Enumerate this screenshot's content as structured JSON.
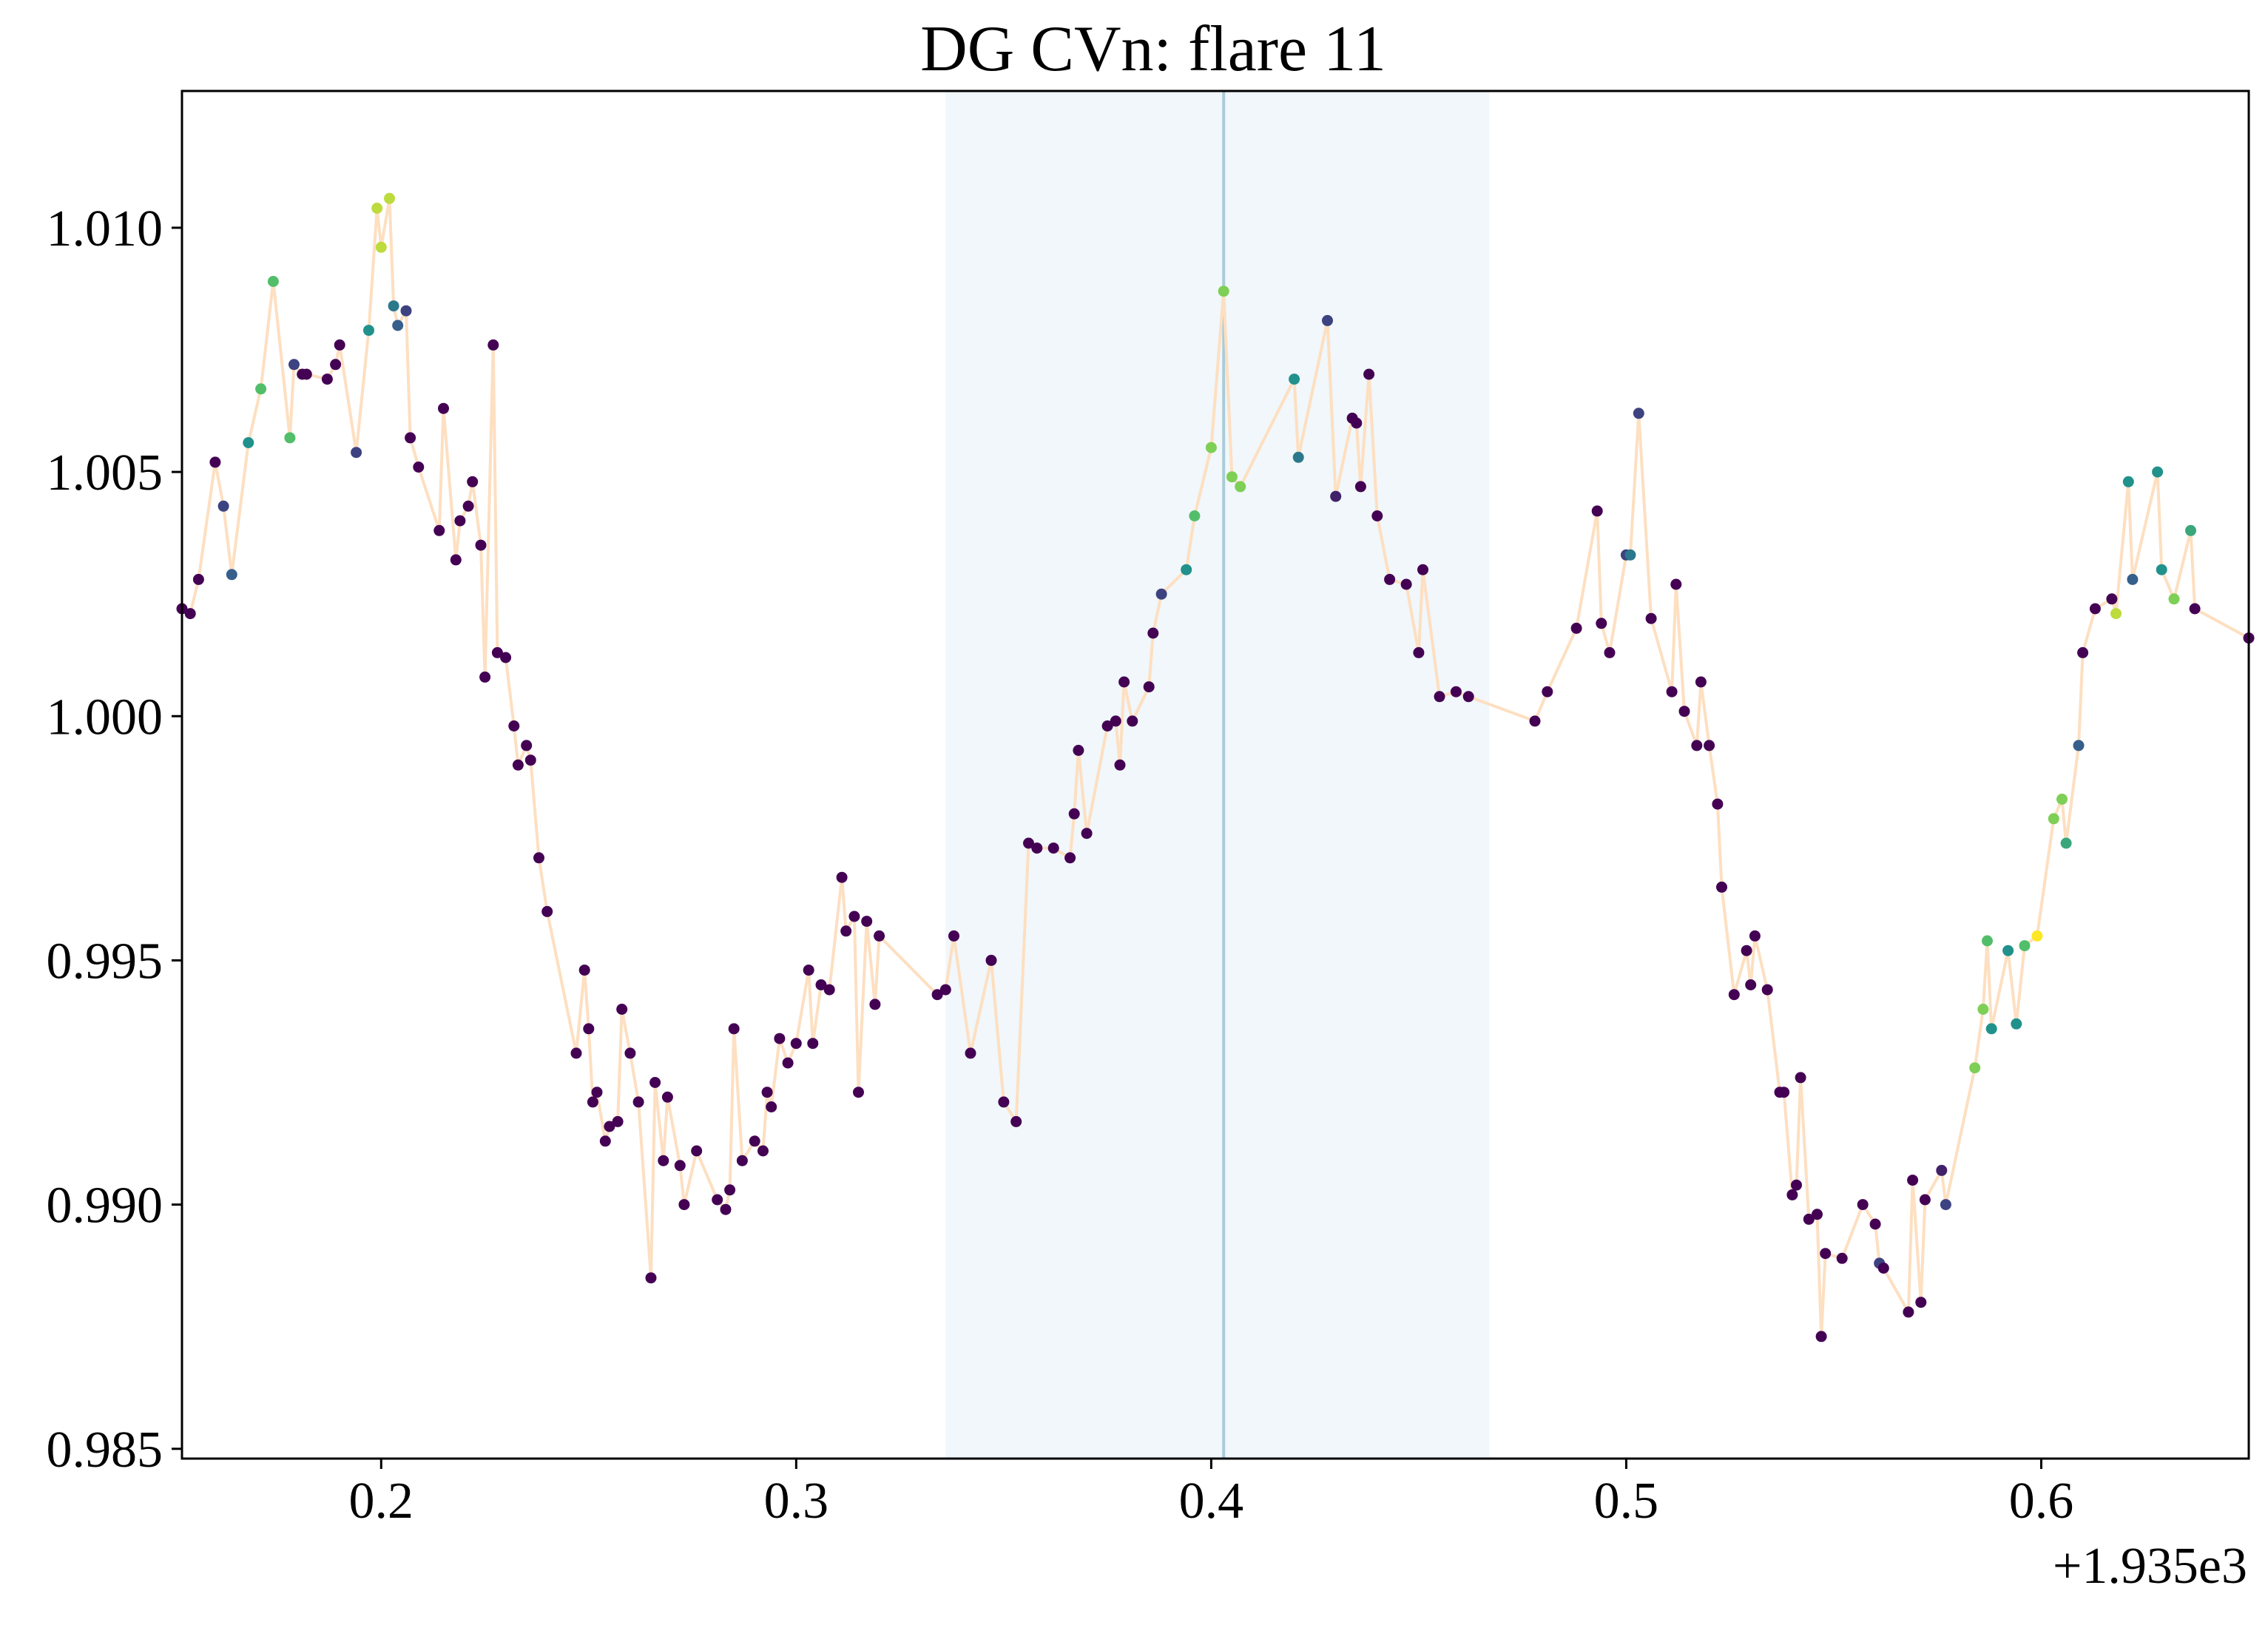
{
  "chart_data": {
    "type": "scatter",
    "title": "DG CVn: flare 11",
    "xlabel": "",
    "ylabel": "",
    "x_offset_label": "+1.935e3",
    "xlim": [
      0.152,
      0.65
    ],
    "ylim": [
      0.9848,
      1.0128
    ],
    "x_ticks": [
      0.2,
      0.3,
      0.4,
      0.5,
      0.6
    ],
    "x_tick_labels": [
      "0.2",
      "0.3",
      "0.4",
      "0.5",
      "0.6"
    ],
    "y_ticks": [
      0.985,
      0.99,
      0.995,
      1.0,
      1.005,
      1.01
    ],
    "y_tick_labels": [
      "0.985",
      "0.990",
      "0.995",
      "1.000",
      "1.005",
      "1.010"
    ],
    "grid": false,
    "shaded_region": {
      "x_start": 0.336,
      "x_end": 0.467,
      "color": "#f1f7fa"
    },
    "vertical_line": {
      "x": 0.403,
      "color": "#a9ccd8"
    },
    "line_color": "#fddfc1",
    "colormap": [
      "#440154",
      "#3b528b",
      "#21918c",
      "#5ec962",
      "#fde725"
    ],
    "series": [
      {
        "points": [
          [
            0.152,
            1.0022,
            0.0
          ],
          [
            0.154,
            1.0021,
            0.0
          ],
          [
            0.156,
            1.0028,
            0.0
          ],
          [
            0.16,
            1.0052,
            0.0
          ],
          [
            0.162,
            1.0043,
            0.2
          ],
          [
            0.164,
            1.0029,
            0.3
          ],
          [
            0.168,
            1.0056,
            0.5
          ],
          [
            0.171,
            1.0067,
            0.7
          ],
          [
            0.174,
            1.0089,
            0.7
          ],
          [
            0.178,
            1.0057,
            0.7
          ],
          [
            0.179,
            1.0072,
            0.2
          ],
          [
            0.181,
            1.007,
            0.0
          ],
          [
            0.182,
            1.007,
            0.0
          ],
          [
            0.187,
            1.0069,
            0.0
          ],
          [
            0.189,
            1.0072,
            0.0
          ],
          [
            0.19,
            1.0076,
            0.0
          ],
          [
            0.194,
            1.0054,
            0.2
          ],
          [
            0.197,
            1.0079,
            0.5
          ],
          [
            0.199,
            1.0104,
            0.9
          ],
          [
            0.2,
            1.0096,
            0.9
          ],
          [
            0.202,
            1.0106,
            0.9
          ],
          [
            0.203,
            1.0084,
            0.4
          ],
          [
            0.204,
            1.008,
            0.3
          ],
          [
            0.206,
            1.0083,
            0.2
          ],
          [
            0.207,
            1.0057,
            0.0
          ],
          [
            0.209,
            1.0051,
            0.0
          ],
          [
            0.214,
            1.0038,
            0.0
          ],
          [
            0.215,
            1.0063,
            0.0
          ],
          [
            0.218,
            1.0032,
            0.0
          ],
          [
            0.219,
            1.004,
            0.0
          ],
          [
            0.221,
            1.0043,
            0.0
          ],
          [
            0.222,
            1.0048,
            0.0
          ],
          [
            0.224,
            1.0035,
            0.0
          ],
          [
            0.225,
            1.0008,
            0.0
          ],
          [
            0.227,
            1.0076,
            0.0
          ],
          [
            0.228,
            1.0013,
            0.0
          ],
          [
            0.23,
            1.0012,
            0.0
          ],
          [
            0.232,
            0.9998,
            0.0
          ],
          [
            0.233,
            0.999,
            0.0
          ],
          [
            0.235,
            0.9994,
            0.0
          ],
          [
            0.236,
            0.9991,
            0.0
          ],
          [
            0.238,
            0.9971,
            0.0
          ],
          [
            0.24,
            0.996,
            0.0
          ],
          [
            0.247,
            0.9931,
            0.0
          ],
          [
            0.249,
            0.9948,
            0.0
          ],
          [
            0.25,
            0.9936,
            0.0
          ],
          [
            0.251,
            0.9921,
            0.0
          ],
          [
            0.252,
            0.9923,
            0.0
          ],
          [
            0.254,
            0.9913,
            0.0
          ],
          [
            0.255,
            0.9916,
            0.0
          ],
          [
            0.257,
            0.9917,
            0.0
          ],
          [
            0.258,
            0.994,
            0.0
          ],
          [
            0.26,
            0.9931,
            0.0
          ],
          [
            0.262,
            0.9921,
            0.0
          ],
          [
            0.265,
            0.9885,
            0.0
          ],
          [
            0.266,
            0.9925,
            0.0
          ],
          [
            0.268,
            0.9909,
            0.0
          ],
          [
            0.269,
            0.9922,
            0.0
          ],
          [
            0.272,
            0.9908,
            0.0
          ],
          [
            0.273,
            0.99,
            0.0
          ],
          [
            0.276,
            0.9911,
            0.0
          ],
          [
            0.281,
            0.9901,
            0.0
          ],
          [
            0.283,
            0.9899,
            0.0
          ],
          [
            0.284,
            0.9903,
            0.0
          ],
          [
            0.285,
            0.9936,
            0.0
          ],
          [
            0.287,
            0.9909,
            0.0
          ],
          [
            0.29,
            0.9913,
            0.0
          ],
          [
            0.292,
            0.9911,
            0.0
          ],
          [
            0.293,
            0.9923,
            0.0
          ],
          [
            0.294,
            0.992,
            0.0
          ],
          [
            0.296,
            0.9934,
            0.0
          ],
          [
            0.298,
            0.9929,
            0.0
          ],
          [
            0.3,
            0.9933,
            0.0
          ],
          [
            0.303,
            0.9948,
            0.0
          ],
          [
            0.304,
            0.9933,
            0.0
          ],
          [
            0.306,
            0.9945,
            0.0
          ],
          [
            0.308,
            0.9944,
            0.0
          ],
          [
            0.311,
            0.9967,
            0.0
          ],
          [
            0.312,
            0.9956,
            0.0
          ],
          [
            0.314,
            0.9959,
            0.0
          ],
          [
            0.315,
            0.9923,
            0.0
          ],
          [
            0.317,
            0.9958,
            0.0
          ],
          [
            0.319,
            0.9941,
            0.0
          ],
          [
            0.32,
            0.9955,
            0.0
          ],
          [
            0.334,
            0.9943,
            0.0
          ],
          [
            0.336,
            0.9944,
            0.0
          ],
          [
            0.338,
            0.9955,
            0.0
          ],
          [
            0.342,
            0.9931,
            0.0
          ],
          [
            0.347,
            0.995,
            0.0
          ],
          [
            0.35,
            0.9921,
            0.0
          ],
          [
            0.353,
            0.9917,
            0.0
          ],
          [
            0.356,
            0.9974,
            0.0
          ],
          [
            0.358,
            0.9973,
            0.0
          ],
          [
            0.362,
            0.9973,
            0.0
          ],
          [
            0.366,
            0.9971,
            0.0
          ],
          [
            0.367,
            0.998,
            0.0
          ],
          [
            0.368,
            0.9993,
            0.0
          ],
          [
            0.37,
            0.9976,
            0.0
          ],
          [
            0.375,
            0.9998,
            0.0
          ],
          [
            0.377,
            0.9999,
            0.0
          ],
          [
            0.378,
            0.999,
            0.0
          ],
          [
            0.379,
            1.0007,
            0.0
          ],
          [
            0.381,
            0.9999,
            0.0
          ],
          [
            0.385,
            1.0006,
            0.0
          ],
          [
            0.386,
            1.0017,
            0.0
          ],
          [
            0.388,
            1.0025,
            0.2
          ],
          [
            0.394,
            1.003,
            0.5
          ],
          [
            0.396,
            1.0041,
            0.7
          ],
          [
            0.4,
            1.0055,
            0.8
          ],
          [
            0.403,
            1.0087,
            0.8
          ],
          [
            0.405,
            1.0049,
            0.8
          ],
          [
            0.407,
            1.0047,
            0.8
          ],
          [
            0.42,
            1.0069,
            0.5
          ],
          [
            0.421,
            1.0053,
            0.4
          ],
          [
            0.428,
            1.0081,
            0.2
          ],
          [
            0.43,
            1.0045,
            0.1
          ],
          [
            0.434,
            1.0061,
            0.0
          ],
          [
            0.435,
            1.006,
            0.0
          ],
          [
            0.436,
            1.0047,
            0.0
          ],
          [
            0.438,
            1.007,
            0.0
          ],
          [
            0.44,
            1.0041,
            0.0
          ],
          [
            0.443,
            1.0028,
            0.0
          ],
          [
            0.447,
            1.0027,
            0.0
          ],
          [
            0.45,
            1.0013,
            0.0
          ],
          [
            0.451,
            1.003,
            0.0
          ],
          [
            0.455,
            1.0004,
            0.0
          ],
          [
            0.459,
            1.0005,
            0.0
          ],
          [
            0.462,
            1.0004,
            0.0
          ],
          [
            0.478,
            0.9999,
            0.0
          ],
          [
            0.481,
            1.0005,
            0.0
          ],
          [
            0.488,
            1.0018,
            0.0
          ],
          [
            0.493,
            1.0042,
            0.0
          ],
          [
            0.494,
            1.0019,
            0.0
          ],
          [
            0.496,
            1.0013,
            0.0
          ],
          [
            0.5,
            1.0033,
            0.2
          ],
          [
            0.501,
            1.0033,
            0.4
          ],
          [
            0.503,
            1.0062,
            0.2
          ],
          [
            0.506,
            1.002,
            0.0
          ],
          [
            0.511,
            1.0005,
            0.0
          ],
          [
            0.512,
            1.0027,
            0.0
          ],
          [
            0.514,
            1.0001,
            0.0
          ],
          [
            0.517,
            0.9994,
            0.0
          ],
          [
            0.518,
            1.0007,
            0.0
          ],
          [
            0.52,
            0.9994,
            0.0
          ],
          [
            0.522,
            0.9982,
            0.0
          ],
          [
            0.523,
            0.9965,
            0.0
          ],
          [
            0.526,
            0.9943,
            0.0
          ],
          [
            0.529,
            0.9952,
            0.0
          ],
          [
            0.53,
            0.9945,
            0.0
          ],
          [
            0.531,
            0.9955,
            0.0
          ],
          [
            0.534,
            0.9944,
            0.0
          ],
          [
            0.537,
            0.9923,
            0.0
          ],
          [
            0.538,
            0.9923,
            0.0
          ],
          [
            0.54,
            0.9902,
            0.0
          ],
          [
            0.541,
            0.9904,
            0.0
          ],
          [
            0.542,
            0.9926,
            0.0
          ],
          [
            0.544,
            0.9897,
            0.0
          ],
          [
            0.546,
            0.9898,
            0.0
          ],
          [
            0.547,
            0.9873,
            0.0
          ],
          [
            0.548,
            0.989,
            0.0
          ],
          [
            0.552,
            0.9889,
            0.0
          ],
          [
            0.557,
            0.99,
            0.0
          ],
          [
            0.56,
            0.9896,
            0.0
          ],
          [
            0.561,
            0.9888,
            0.2
          ],
          [
            0.562,
            0.9887,
            0.0
          ],
          [
            0.568,
            0.9878,
            0.0
          ],
          [
            0.569,
            0.9905,
            0.0
          ],
          [
            0.571,
            0.988,
            0.0
          ],
          [
            0.572,
            0.9901,
            0.0
          ],
          [
            0.576,
            0.9907,
            0.1
          ],
          [
            0.577,
            0.99,
            0.2
          ],
          [
            0.584,
            0.9928,
            0.8
          ],
          [
            0.586,
            0.994,
            0.8
          ],
          [
            0.587,
            0.9954,
            0.7
          ],
          [
            0.588,
            0.9936,
            0.5
          ],
          [
            0.592,
            0.9952,
            0.5
          ],
          [
            0.594,
            0.9937,
            0.5
          ],
          [
            0.596,
            0.9953,
            0.7
          ],
          [
            0.599,
            0.9955,
            1.0
          ],
          [
            0.603,
            0.9979,
            0.8
          ],
          [
            0.605,
            0.9983,
            0.8
          ],
          [
            0.606,
            0.9974,
            0.6
          ],
          [
            0.609,
            0.9994,
            0.3
          ],
          [
            0.61,
            1.0013,
            0.0
          ],
          [
            0.613,
            1.0022,
            0.0
          ],
          [
            0.617,
            1.0024,
            0.0
          ],
          [
            0.618,
            1.0021,
            0.9
          ],
          [
            0.621,
            1.0048,
            0.5
          ],
          [
            0.622,
            1.0028,
            0.3
          ],
          [
            0.628,
            1.005,
            0.5
          ],
          [
            0.629,
            1.003,
            0.5
          ],
          [
            0.632,
            1.0024,
            0.8
          ],
          [
            0.636,
            1.0038,
            0.6
          ],
          [
            0.637,
            1.0022,
            0.0
          ],
          [
            0.65,
            1.0016,
            0.0
          ]
        ]
      }
    ]
  }
}
